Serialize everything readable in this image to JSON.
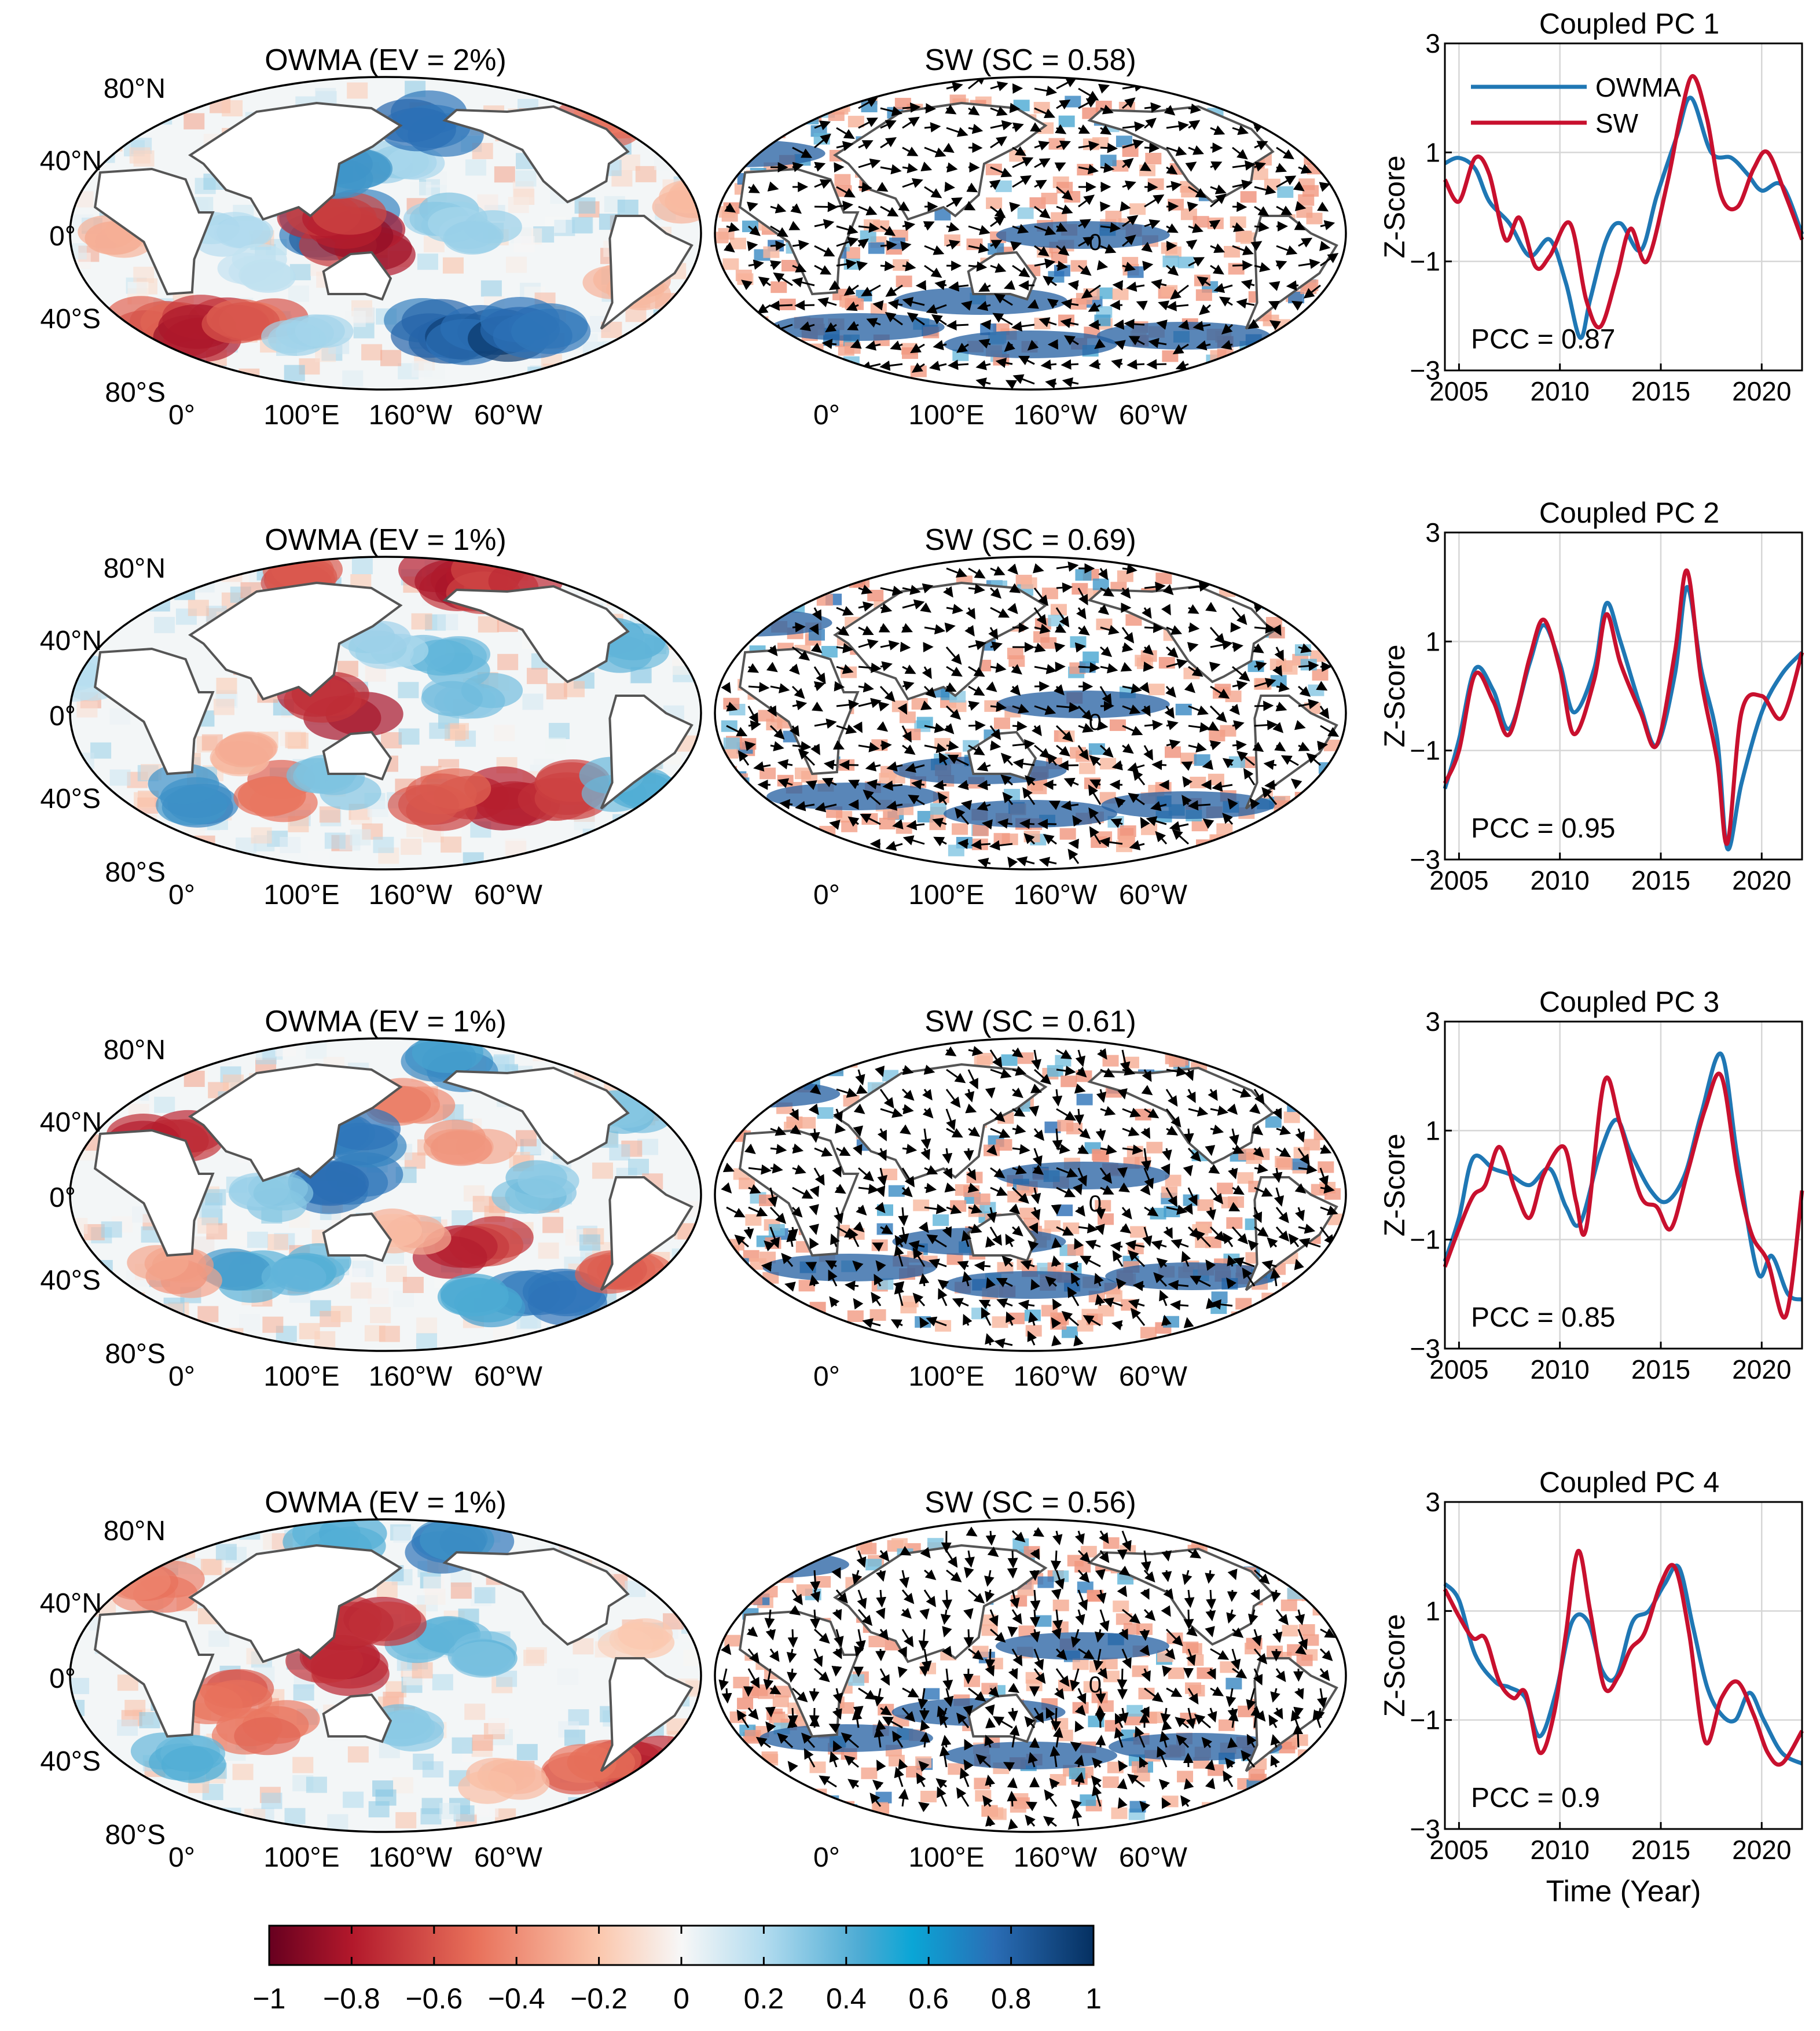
{
  "figure": {
    "rows": [
      {
        "owma_title": "OWMA (EV = 2%)",
        "sw_title": "SW (SC = 0.58)",
        "pc_title": "Coupled PC 1",
        "pcc_label": "PCC = 0.87",
        "owma_patches": [
          {
            "lon": 10,
            "lat": -55,
            "val": -0.7
          },
          {
            "lon": 40,
            "lat": -55,
            "val": -0.9
          },
          {
            "lon": 70,
            "lat": -50,
            "val": -0.6
          },
          {
            "lon": 100,
            "lat": -60,
            "val": 0.3
          },
          {
            "lon": 180,
            "lat": -55,
            "val": 0.9
          },
          {
            "lon": 220,
            "lat": -58,
            "val": 1.0
          },
          {
            "lon": 250,
            "lat": -55,
            "val": 0.95
          },
          {
            "lon": 125,
            "lat": 5,
            "val": 0.9
          },
          {
            "lon": 130,
            "lat": -5,
            "val": -0.9
          },
          {
            "lon": 120,
            "lat": 10,
            "val": -0.8
          },
          {
            "lon": 180,
            "lat": 10,
            "val": 0.35
          },
          {
            "lon": 200,
            "lat": 0,
            "val": 0.3
          },
          {
            "lon": 160,
            "lat": 40,
            "val": 0.3
          },
          {
            "lon": 175,
            "lat": 62,
            "val": 0.85
          },
          {
            "lon": 130,
            "lat": 38,
            "val": 0.7
          },
          {
            "lon": 300,
            "lat": 65,
            "val": -0.6
          },
          {
            "lon": 320,
            "lat": 20,
            "val": -0.3
          },
          {
            "lon": 60,
            "lat": 0,
            "val": 0.25
          },
          {
            "lon": 80,
            "lat": -20,
            "val": 0.2
          },
          {
            "lon": 290,
            "lat": -30,
            "val": -0.3
          },
          {
            "lon": 0,
            "lat": 0,
            "val": -0.3
          }
        ]
      },
      {
        "owma_title": "OWMA (EV = 1%)",
        "sw_title": "SW (SC = 0.69)",
        "pc_title": "Coupled PC 2",
        "pcc_label": "PCC = 0.95",
        "owma_patches": [
          {
            "lon": 200,
            "lat": 78,
            "val": -0.9
          },
          {
            "lon": 100,
            "lat": 78,
            "val": -0.7
          },
          {
            "lon": 240,
            "lat": 75,
            "val": -0.8
          },
          {
            "lon": 180,
            "lat": 30,
            "val": 0.45
          },
          {
            "lon": 200,
            "lat": 10,
            "val": 0.4
          },
          {
            "lon": 150,
            "lat": 40,
            "val": 0.3
          },
          {
            "lon": 125,
            "lat": 5,
            "val": -0.9
          },
          {
            "lon": 220,
            "lat": -50,
            "val": -0.85
          },
          {
            "lon": 260,
            "lat": -45,
            "val": -0.8
          },
          {
            "lon": 180,
            "lat": -50,
            "val": -0.7
          },
          {
            "lon": 30,
            "lat": -48,
            "val": 0.7
          },
          {
            "lon": 90,
            "lat": -45,
            "val": -0.6
          },
          {
            "lon": 120,
            "lat": -40,
            "val": 0.4
          },
          {
            "lon": 300,
            "lat": -40,
            "val": 0.5
          },
          {
            "lon": 60,
            "lat": -25,
            "val": -0.3
          },
          {
            "lon": 300,
            "lat": 40,
            "val": 0.5
          },
          {
            "lon": 340,
            "lat": 20,
            "val": 0.2
          }
        ]
      },
      {
        "owma_title": "OWMA (EV = 1%)",
        "sw_title": "SW (SC = 0.61)",
        "pc_title": "Coupled PC 3",
        "pcc_label": "PCC = 0.85",
        "owma_patches": [
          {
            "lon": 160,
            "lat": 50,
            "val": -0.5
          },
          {
            "lon": 200,
            "lat": 30,
            "val": -0.4
          },
          {
            "lon": 200,
            "lat": 75,
            "val": 0.7
          },
          {
            "lon": 125,
            "lat": 5,
            "val": 0.9
          },
          {
            "lon": 130,
            "lat": 35,
            "val": 0.8
          },
          {
            "lon": 20,
            "lat": 35,
            "val": -0.8
          },
          {
            "lon": 200,
            "lat": -30,
            "val": -0.8
          },
          {
            "lon": 250,
            "lat": -55,
            "val": 0.95
          },
          {
            "lon": 210,
            "lat": -60,
            "val": 0.6
          },
          {
            "lon": 300,
            "lat": -50,
            "val": -0.6
          },
          {
            "lon": 60,
            "lat": -45,
            "val": 0.6
          },
          {
            "lon": 100,
            "lat": -45,
            "val": 0.5
          },
          {
            "lon": 20,
            "lat": -45,
            "val": -0.4
          },
          {
            "lon": 240,
            "lat": 5,
            "val": 0.4
          },
          {
            "lon": 80,
            "lat": 0,
            "val": 0.35
          },
          {
            "lon": 160,
            "lat": -20,
            "val": -0.3
          },
          {
            "lon": 300,
            "lat": 45,
            "val": 0.4
          }
        ]
      },
      {
        "owma_title": "OWMA (EV = 1%)",
        "sw_title": "SW (SC = 0.56)",
        "pc_title": "Coupled PC 4",
        "pcc_label": "PCC = 0.9",
        "owma_patches": [
          {
            "lon": 200,
            "lat": 78,
            "val": 0.8
          },
          {
            "lon": 110,
            "lat": 78,
            "val": 0.6
          },
          {
            "lon": 180,
            "lat": 20,
            "val": 0.5
          },
          {
            "lon": 210,
            "lat": 10,
            "val": 0.45
          },
          {
            "lon": 60,
            "lat": -10,
            "val": -0.6
          },
          {
            "lon": 80,
            "lat": -30,
            "val": -0.55
          },
          {
            "lon": 125,
            "lat": 5,
            "val": -0.9
          },
          {
            "lon": 135,
            "lat": 35,
            "val": -0.9
          },
          {
            "lon": 320,
            "lat": -55,
            "val": -0.9
          },
          {
            "lon": 280,
            "lat": -55,
            "val": -0.6
          },
          {
            "lon": 160,
            "lat": -30,
            "val": 0.4
          },
          {
            "lon": 20,
            "lat": -50,
            "val": 0.5
          },
          {
            "lon": 230,
            "lat": -60,
            "val": -0.3
          },
          {
            "lon": 300,
            "lat": 20,
            "val": -0.2
          },
          {
            "lon": 5,
            "lat": 50,
            "val": -0.5
          }
        ]
      }
    ],
    "map_lat_labels": [
      "80°N",
      "40°N",
      "0°",
      "40°S",
      "80°S"
    ],
    "map_lon_labels": [
      "0°",
      "100°E",
      "160°W",
      "60°W"
    ],
    "wind_zero_label": "0"
  },
  "chart_data": [
    {
      "type": "line",
      "title": "Coupled PC 1",
      "xlabel": "",
      "ylabel": "Z-Score",
      "xlim": [
        2004.3,
        2022
      ],
      "ylim": [
        -3,
        3
      ],
      "xticks": [
        "2005",
        "2010",
        "2015",
        "2020"
      ],
      "yticks": [
        "3",
        "1",
        "−1",
        "−3"
      ],
      "annotation": "PCC = 0.87",
      "legend": [
        "OWMA",
        "SW"
      ],
      "series": [
        {
          "name": "OWMA",
          "color": "#1f77b4",
          "x": [
            2004.3,
            2005,
            2005.8,
            2006.5,
            2007.5,
            2008.5,
            2009.5,
            2010.3,
            2011,
            2011.5,
            2012.3,
            2013,
            2014,
            2014.8,
            2015.8,
            2016.5,
            2017.5,
            2018.5,
            2019.3,
            2020,
            2021,
            2022
          ],
          "y": [
            0.8,
            0.9,
            0.7,
            0.1,
            -0.3,
            -0.9,
            -0.6,
            -1.4,
            -2.4,
            -1.7,
            -0.6,
            -0.3,
            -0.8,
            0.2,
            1.3,
            2.0,
            1.0,
            0.9,
            0.6,
            0.3,
            0.4,
            -0.5
          ]
        },
        {
          "name": "SW",
          "color": "#c8102e",
          "x": [
            2004.3,
            2005,
            2005.8,
            2006.5,
            2007.3,
            2008,
            2008.8,
            2009.5,
            2010.5,
            2011.3,
            2012,
            2012.8,
            2013.5,
            2014.3,
            2015.3,
            2016,
            2016.6,
            2017.3,
            2018,
            2018.8,
            2019.6,
            2020.3,
            2021.2,
            2022
          ],
          "y": [
            0.5,
            0.1,
            0.9,
            0.6,
            -0.6,
            -0.2,
            -1.1,
            -0.9,
            -0.3,
            -1.7,
            -2.2,
            -1.3,
            -0.4,
            -1.0,
            0.4,
            1.7,
            2.4,
            1.6,
            0.2,
            0.0,
            0.7,
            1.0,
            0.2,
            -0.6
          ]
        }
      ]
    },
    {
      "type": "line",
      "title": "Coupled PC 2",
      "xlabel": "",
      "ylabel": "Z-Score",
      "xlim": [
        2004.3,
        2022
      ],
      "ylim": [
        -3,
        3
      ],
      "xticks": [
        "2005",
        "2010",
        "2015",
        "2020"
      ],
      "yticks": [
        "3",
        "1",
        "−1",
        "−3"
      ],
      "annotation": "PCC = 0.95",
      "series": [
        {
          "name": "OWMA",
          "color": "#1f77b4",
          "x": [
            2004.3,
            2005,
            2005.8,
            2006.7,
            2007.5,
            2008.5,
            2009.2,
            2010,
            2010.7,
            2011.7,
            2012.3,
            2013,
            2014,
            2014.8,
            2015.7,
            2016.3,
            2017,
            2017.8,
            2018.3,
            2019,
            2020,
            2021,
            2022
          ],
          "y": [
            -1.7,
            -0.8,
            0.5,
            0.1,
            -0.6,
            0.6,
            1.3,
            0.6,
            -0.3,
            0.5,
            1.7,
            1.0,
            -0.2,
            -0.9,
            0.4,
            2.0,
            0.5,
            -0.8,
            -2.8,
            -1.6,
            -0.3,
            0.4,
            0.8
          ]
        },
        {
          "name": "SW",
          "color": "#c8102e",
          "x": [
            2004.3,
            2005,
            2005.8,
            2006.7,
            2007.5,
            2008.5,
            2009.2,
            2010,
            2010.7,
            2011.7,
            2012.3,
            2013,
            2014,
            2014.8,
            2015.7,
            2016.3,
            2017,
            2017.8,
            2018.3,
            2019,
            2020,
            2021,
            2022
          ],
          "y": [
            -1.6,
            -1.0,
            0.4,
            -0.1,
            -0.7,
            0.7,
            1.4,
            0.5,
            -0.7,
            0.3,
            1.5,
            0.6,
            -0.3,
            -0.9,
            0.8,
            2.3,
            0.3,
            -1.2,
            -2.7,
            -0.3,
            0.0,
            -0.4,
            0.8
          ]
        }
      ]
    },
    {
      "type": "line",
      "title": "Coupled PC 3",
      "xlabel": "",
      "ylabel": "Z-Score",
      "xlim": [
        2004.3,
        2022
      ],
      "ylim": [
        -3,
        3
      ],
      "xticks": [
        "2005",
        "2010",
        "2015",
        "2020"
      ],
      "yticks": [
        "3",
        "1",
        "−1",
        "−3"
      ],
      "annotation": "PCC = 0.85",
      "series": [
        {
          "name": "OWMA",
          "color": "#1f77b4",
          "x": [
            2004.3,
            2005,
            2005.7,
            2006.7,
            2007.5,
            2008.5,
            2009.5,
            2010.3,
            2011,
            2012,
            2012.8,
            2013.5,
            2014.5,
            2015.3,
            2016.2,
            2017,
            2018,
            2018.8,
            2019.8,
            2020.5,
            2021.3,
            2022
          ],
          "y": [
            -1.4,
            -0.6,
            0.5,
            0.3,
            0.2,
            0.0,
            0.3,
            -0.4,
            -0.7,
            0.6,
            1.2,
            0.6,
            -0.1,
            -0.3,
            0.2,
            1.3,
            2.4,
            0.5,
            -1.6,
            -1.3,
            -2.0,
            -2.1
          ]
        },
        {
          "name": "SW",
          "color": "#c8102e",
          "x": [
            2004.3,
            2005,
            2005.7,
            2006.3,
            2007,
            2007.8,
            2008.5,
            2009.2,
            2010.2,
            2010.8,
            2011.3,
            2012.2,
            2013,
            2014,
            2014.8,
            2015.5,
            2016.3,
            2017.2,
            2018,
            2018.8,
            2019.5,
            2020.3,
            2021.2,
            2022
          ],
          "y": [
            -1.5,
            -0.8,
            -0.2,
            0.0,
            0.7,
            -0.1,
            -0.6,
            0.2,
            0.7,
            -0.3,
            -0.8,
            1.9,
            1.1,
            -0.2,
            -0.4,
            -0.8,
            0.2,
            1.4,
            2.0,
            0.2,
            -0.9,
            -1.4,
            -2.4,
            -0.1
          ]
        }
      ]
    },
    {
      "type": "line",
      "title": "Coupled PC 4",
      "xlabel": "Time (Year)",
      "ylabel": "Z-Score",
      "xlim": [
        2004.3,
        2022
      ],
      "ylim": [
        -3,
        3
      ],
      "xticks": [
        "2005",
        "2010",
        "2015",
        "2020"
      ],
      "yticks": [
        "3",
        "1",
        "−1",
        "−3"
      ],
      "annotation": "PCC = 0.9",
      "series": [
        {
          "name": "OWMA",
          "color": "#1f77b4",
          "x": [
            2004.3,
            2005,
            2005.8,
            2006.8,
            2007.5,
            2008.3,
            2009,
            2009.8,
            2010.6,
            2011.4,
            2012.1,
            2012.8,
            2013.6,
            2014.4,
            2015.2,
            2015.9,
            2016.6,
            2017.3,
            2018,
            2018.7,
            2019.4,
            2020.1,
            2021,
            2022
          ],
          "y": [
            1.5,
            1.2,
            0.2,
            -0.3,
            -0.4,
            -0.6,
            -1.3,
            -0.5,
            0.8,
            0.8,
            -0.1,
            -0.2,
            0.8,
            1.0,
            1.5,
            1.8,
            0.7,
            -0.4,
            -0.9,
            -1.0,
            -0.5,
            -1.0,
            -1.6,
            -1.8
          ]
        },
        {
          "name": "SW",
          "color": "#c8102e",
          "x": [
            2004.3,
            2005,
            2005.7,
            2006.3,
            2007,
            2007.7,
            2008.3,
            2009,
            2009.7,
            2010.3,
            2010.9,
            2011.5,
            2012.2,
            2012.9,
            2013.5,
            2014.2,
            2015,
            2015.7,
            2016.4,
            2017.2,
            2018,
            2018.8,
            2019.6,
            2020.3,
            2021,
            2022
          ],
          "y": [
            1.4,
            0.9,
            0.5,
            0.5,
            -0.3,
            -0.6,
            -0.5,
            -1.6,
            -0.9,
            0.6,
            2.1,
            1.0,
            -0.4,
            -0.2,
            0.3,
            0.6,
            1.5,
            1.8,
            0.6,
            -1.4,
            -0.6,
            -0.3,
            -0.9,
            -1.6,
            -1.8,
            -1.2
          ]
        }
      ]
    },
    {
      "type": "heatmap",
      "title": "",
      "xlabel": "",
      "ylabel": "",
      "colorbar_ticks": [
        "−1",
        "−0.8",
        "−0.6",
        "−0.4",
        "−0.2",
        "0",
        "0.2",
        "0.4",
        "0.6",
        "0.8",
        "1"
      ],
      "colorbar_range": [
        -1,
        1
      ]
    }
  ]
}
